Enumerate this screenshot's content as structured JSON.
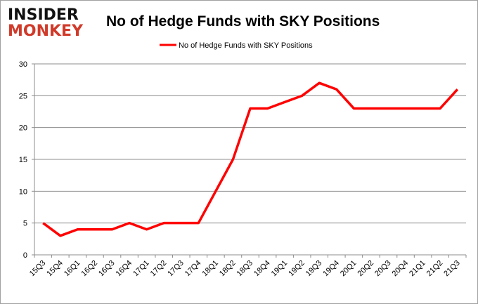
{
  "logo": {
    "line1": "INSIDER",
    "line2": "MONKEY"
  },
  "chart_data": {
    "type": "line",
    "title": "No of Hedge Funds with SKY Positions",
    "legend": {
      "position": "top",
      "entries": [
        "No of Hedge Funds with SKY Positions"
      ]
    },
    "categories": [
      "15Q3",
      "15Q4",
      "16Q1",
      "16Q2",
      "16Q3",
      "16Q4",
      "17Q1",
      "17Q2",
      "17Q3",
      "17Q4",
      "18Q1",
      "18Q2",
      "18Q3",
      "18Q4",
      "19Q1",
      "19Q2",
      "19Q3",
      "19Q4",
      "20Q1",
      "20Q2",
      "20Q3",
      "20Q4",
      "21Q1",
      "21Q2",
      "21Q3"
    ],
    "series": [
      {
        "name": "No of Hedge Funds with SKY Positions",
        "color": "#ff0000",
        "values": [
          5,
          3,
          4,
          4,
          4,
          5,
          4,
          5,
          5,
          5,
          10,
          15,
          23,
          23,
          24,
          25,
          27,
          26,
          23,
          23,
          23,
          23,
          23,
          23,
          26
        ]
      }
    ],
    "ylim": [
      0,
      30
    ],
    "yticks": [
      0,
      5,
      10,
      15,
      20,
      25,
      30
    ],
    "grid": true,
    "xlabel": "",
    "ylabel": ""
  }
}
